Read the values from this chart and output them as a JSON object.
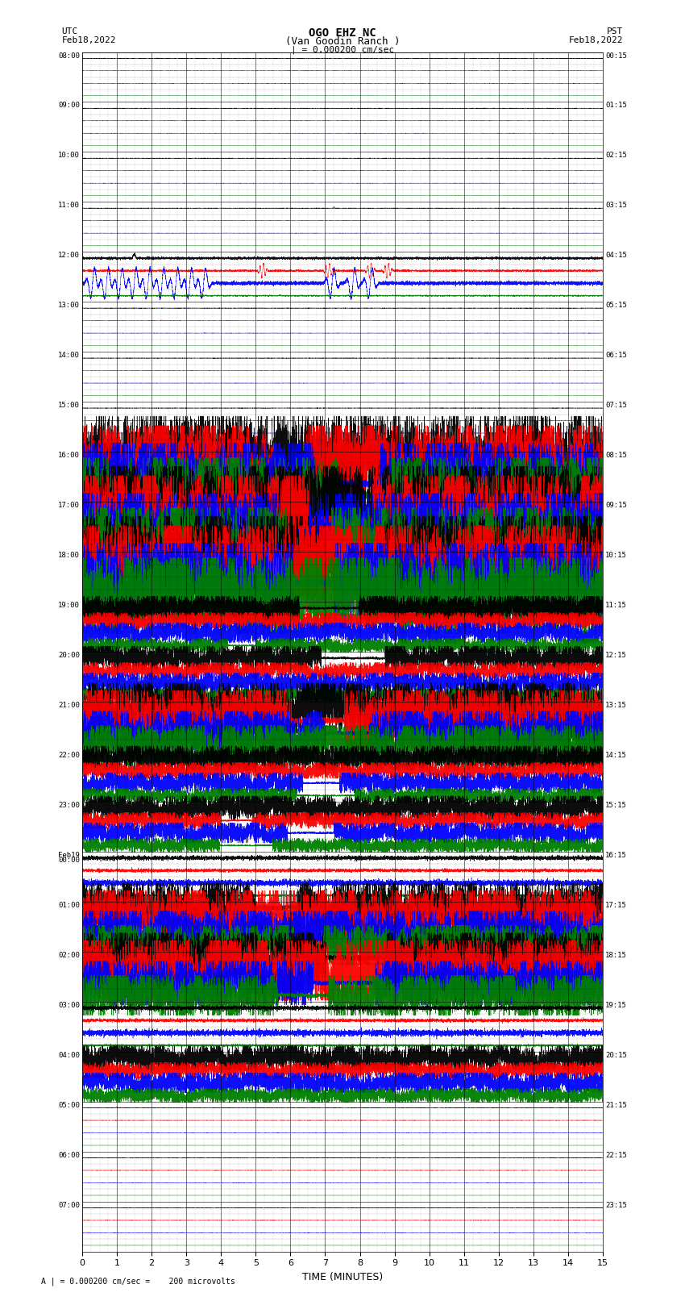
{
  "title_line1": "OGO EHZ NC",
  "title_line2": "(Van Goodin Ranch )",
  "title_line3": "| = 0.000200 cm/sec",
  "left_header_line1": "UTC",
  "left_header_line2": "Feb18,2022",
  "right_header_line1": "PST",
  "right_header_line2": "Feb18,2022",
  "xlabel": "TIME (MINUTES)",
  "footer": "A | = 0.000200 cm/sec =    200 microvolts",
  "xlim": [
    0,
    15
  ],
  "xticks": [
    0,
    1,
    2,
    3,
    4,
    5,
    6,
    7,
    8,
    9,
    10,
    11,
    12,
    13,
    14,
    15
  ],
  "background_color": "#ffffff",
  "utc_labels": [
    "08:00",
    "09:00",
    "10:00",
    "11:00",
    "12:00",
    "13:00",
    "14:00",
    "15:00",
    "16:00",
    "17:00",
    "18:00",
    "19:00",
    "20:00",
    "21:00",
    "22:00",
    "23:00",
    "Feb19\n00:00",
    "01:00",
    "02:00",
    "03:00",
    "04:00",
    "05:00",
    "06:00",
    "07:00"
  ],
  "pst_labels": [
    "00:15",
    "01:15",
    "02:15",
    "03:15",
    "04:15",
    "05:15",
    "06:15",
    "07:15",
    "08:15",
    "09:15",
    "10:15",
    "11:15",
    "12:15",
    "13:15",
    "14:15",
    "15:15",
    "16:15",
    "17:15",
    "18:15",
    "19:15",
    "20:15",
    "21:15",
    "22:15",
    "23:15"
  ],
  "seed": 12345
}
